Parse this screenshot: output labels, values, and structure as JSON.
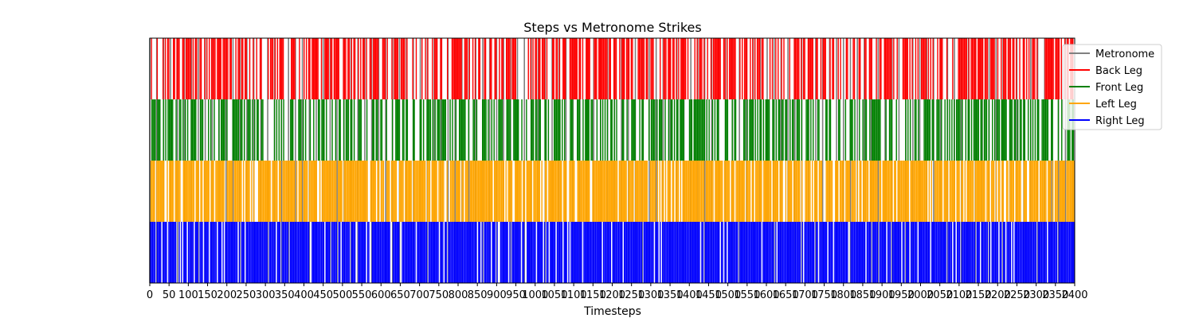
{
  "chart_data": {
    "type": "event-raster",
    "title": "Steps vs Metronome Strikes",
    "xlabel": "Timesteps",
    "ylabel": "",
    "xlim": [
      0,
      2400
    ],
    "x_tick_step": 50,
    "grid": false,
    "legend_placement": "top-right",
    "rows": [
      "Back Leg",
      "Front Leg",
      "Left Leg",
      "Right Leg"
    ],
    "series": [
      {
        "name": "Metronome",
        "color": "#808080",
        "type": "vertical-lines",
        "period": 18,
        "phase": 0
      },
      {
        "name": "Back Leg",
        "color": "#ff0000",
        "row": 0,
        "density": 0.55,
        "period": 3,
        "phase": 0
      },
      {
        "name": "Front Leg",
        "color": "#008000",
        "row": 1,
        "density": 0.5,
        "period": 3,
        "phase": 1
      },
      {
        "name": "Left Leg",
        "color": "#ffa500",
        "row": 2,
        "density": 0.82,
        "period": 3,
        "phase": 2
      },
      {
        "name": "Right Leg",
        "color": "#0000ff",
        "row": 3,
        "density": 0.88,
        "period": 3,
        "phase": 0
      }
    ],
    "legend": [
      "Metronome",
      "Back Leg",
      "Front Leg",
      "Left Leg",
      "Right Leg"
    ]
  }
}
